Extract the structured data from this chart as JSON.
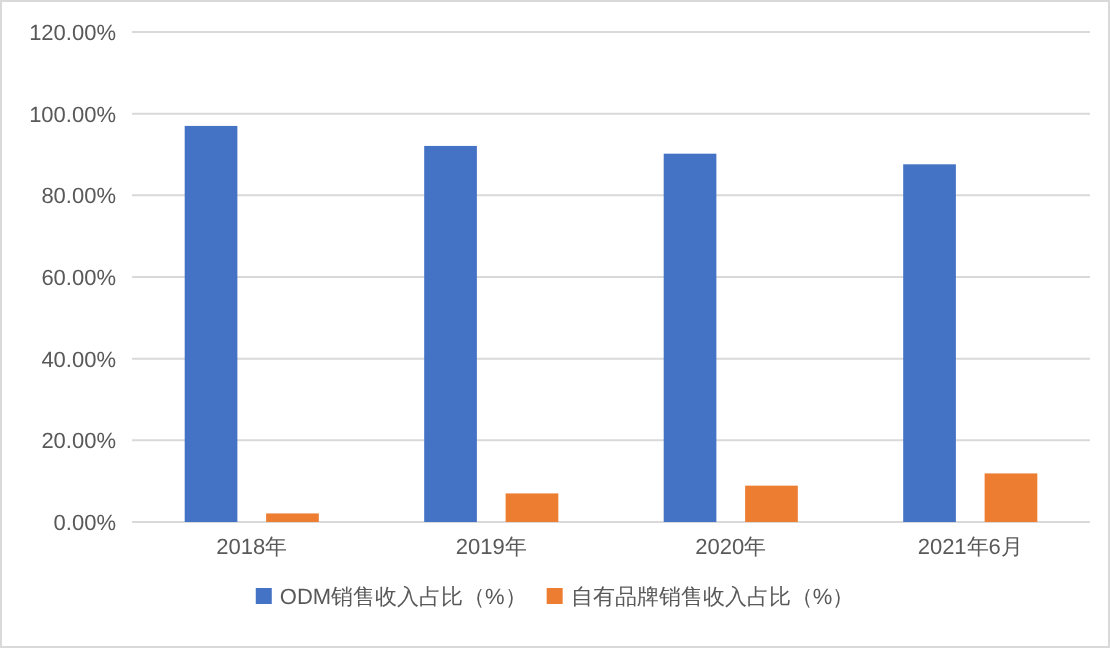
{
  "chart_data": {
    "type": "bar",
    "categories": [
      "2018年",
      "2019年",
      "2020年",
      "2021年6月"
    ],
    "series": [
      {
        "name": "ODM销售收入占比（%）",
        "color": "#4472c4",
        "values": [
          97.0,
          92.1,
          90.2,
          87.6
        ]
      },
      {
        "name": "自有品牌销售收入占比（%）",
        "color": "#ed7d31",
        "values": [
          2.1,
          7.0,
          8.9,
          11.9
        ]
      }
    ],
    "ylim": [
      0,
      120
    ],
    "yticks": [
      {
        "value": 0,
        "label": "0.00%"
      },
      {
        "value": 20,
        "label": "20.00%"
      },
      {
        "value": 40,
        "label": "40.00%"
      },
      {
        "value": 60,
        "label": "60.00%"
      },
      {
        "value": 80,
        "label": "80.00%"
      },
      {
        "value": 100,
        "label": "100.00%"
      },
      {
        "value": 120,
        "label": "120.00%"
      }
    ],
    "grid": "y",
    "legend": "bottom"
  }
}
